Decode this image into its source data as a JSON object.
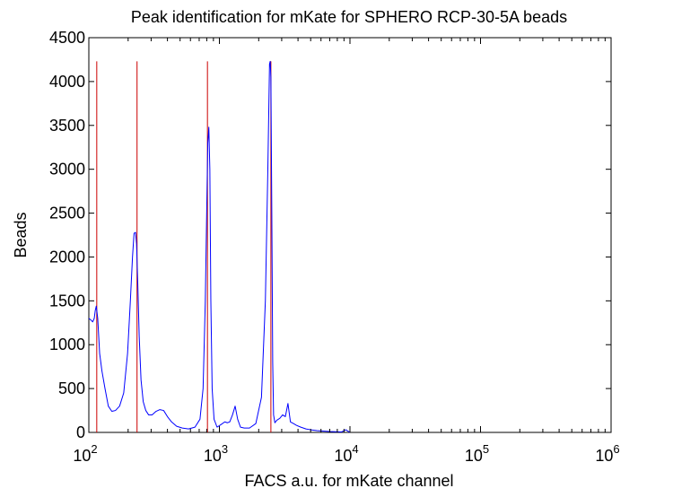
{
  "chart_data": {
    "type": "line",
    "title": "Peak identification for mKate for SPHERO RCP-30-5A beads",
    "xlabel": "FACS a.u. for mKate channel",
    "ylabel": "Beads",
    "xscale": "log",
    "xlim": [
      100,
      1000000
    ],
    "ylim": [
      0,
      4500
    ],
    "yticks": [
      0,
      500,
      1000,
      1500,
      2000,
      2500,
      3000,
      3500,
      4000,
      4500
    ],
    "xticks": [
      {
        "value": 100,
        "base": "10",
        "exp": "2"
      },
      {
        "value": 1000,
        "base": "10",
        "exp": "3"
      },
      {
        "value": 10000,
        "base": "10",
        "exp": "4"
      },
      {
        "value": 100000,
        "base": "10",
        "exp": "5"
      },
      {
        "value": 1000000,
        "base": "10",
        "exp": "6"
      }
    ],
    "grid": false,
    "colors": {
      "histogram": "#0000ff",
      "peak_lines": "#cc0000",
      "axes": "#000000"
    },
    "series": [
      {
        "x": [
          100,
          104,
          107,
          110,
          112,
          114,
          117,
          121,
          126,
          133,
          141,
          150,
          160,
          172,
          185,
          198,
          208,
          216,
          222,
          228,
          232,
          237,
          243,
          251,
          261,
          273,
          287,
          305,
          327,
          350,
          374,
          400,
          430,
          470,
          520,
          580,
          650,
          710,
          750,
          780,
          800,
          815,
          830,
          845,
          860,
          880,
          910,
          960,
          1030,
          1100,
          1150,
          1200,
          1260,
          1320,
          1380,
          1450,
          1550,
          1700,
          1900,
          2100,
          2250,
          2350,
          2420,
          2450,
          2480,
          2520,
          2560,
          2600,
          2660,
          2760,
          2900,
          3050,
          3200,
          3350,
          3500,
          3700,
          3900,
          4200,
          4600,
          5000,
          5600,
          6200,
          7000,
          7800,
          8600,
          9300,
          10000
        ],
        "y": [
          1300,
          1280,
          1260,
          1300,
          1390,
          1440,
          1300,
          900,
          700,
          500,
          300,
          240,
          250,
          300,
          450,
          900,
          1500,
          2000,
          2270,
          2280,
          2150,
          1700,
          1100,
          600,
          350,
          250,
          200,
          200,
          240,
          260,
          250,
          180,
          120,
          70,
          50,
          40,
          60,
          150,
          500,
          1500,
          2550,
          3300,
          3480,
          3000,
          1500,
          500,
          150,
          60,
          90,
          120,
          110,
          120,
          200,
          300,
          150,
          60,
          50,
          50,
          100,
          400,
          1500,
          3000,
          4200,
          4230,
          4050,
          2500,
          800,
          200,
          110,
          140,
          160,
          200,
          180,
          330,
          120,
          100,
          80,
          60,
          40,
          30,
          20,
          15,
          10,
          8,
          5,
          30,
          0
        ]
      }
    ],
    "peak_lines": [
      115,
      234,
      810,
      2480
    ],
    "peak_line_top": 4230
  }
}
